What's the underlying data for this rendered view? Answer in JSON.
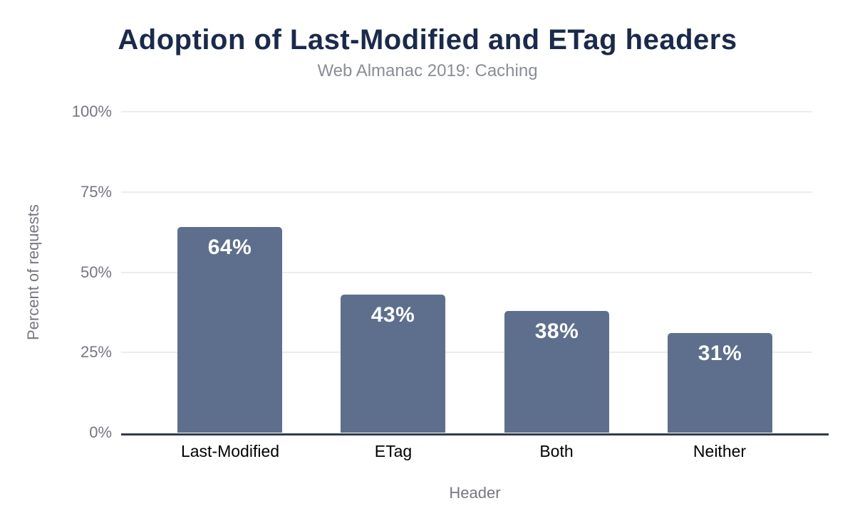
{
  "figure": {
    "title": "Adoption of Last-Modified and ETag headers",
    "subtitle": "Web Almanac 2019: Caching"
  },
  "chart_data": {
    "type": "bar",
    "title": "Adoption of Last-Modified and ETag headers",
    "subtitle": "Web Almanac 2019: Caching",
    "categories": [
      "Last-Modified",
      "ETag",
      "Both",
      "Neither"
    ],
    "values": [
      64,
      43,
      38,
      31
    ],
    "value_labels": [
      "64%",
      "43%",
      "38%",
      "31%"
    ],
    "xlabel": "Header",
    "ylabel": "Percent of requests",
    "ytick_labels": [
      "0%",
      "25%",
      "50%",
      "75%",
      "100%"
    ],
    "ytick_values": [
      0,
      25,
      50,
      75,
      100
    ],
    "ylim": [
      0,
      100
    ],
    "grid": true,
    "legend_position": "none",
    "colors": {
      "background": "#ffffff",
      "bar": "#5d6f8c",
      "title": "#1b2a4a",
      "subtitle": "#8a8e94",
      "axis_text": "#75787f",
      "category_text": "#000000",
      "gridline": "#ececec",
      "axis_line": "#333b48",
      "value_label": "#ffffff"
    }
  }
}
